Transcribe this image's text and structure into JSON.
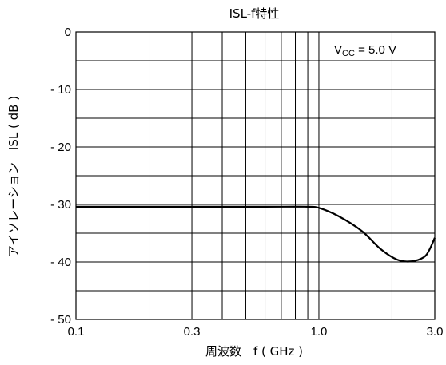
{
  "chart_data": {
    "type": "line",
    "title": "ISL-f特性",
    "xlabel": "周波数　f ( GHz )",
    "ylabel": "アイソレーション　ISL ( dB )",
    "x_scale": "log",
    "xlim": [
      0.1,
      3.0
    ],
    "ylim": [
      -50,
      0
    ],
    "x_tick_labels": [
      "0.1",
      "0.3",
      "1.0",
      "3.0"
    ],
    "x_tick_values": [
      0.1,
      0.3,
      1.0,
      3.0
    ],
    "y_tick_labels": [
      "0",
      "- 10",
      "- 20",
      "- 30",
      "- 40",
      "- 50"
    ],
    "y_tick_values": [
      0,
      -10,
      -20,
      -30,
      -40,
      -50
    ],
    "grid": true,
    "annotation": {
      "main": "V",
      "sub": "CC",
      "rest": " = 5.0 V"
    },
    "series": [
      {
        "x": [
          0.1,
          0.3,
          0.6,
          0.9,
          1.0,
          1.2,
          1.5,
          1.8,
          2.1,
          2.4,
          2.7,
          2.85,
          3.0
        ],
        "values": [
          -30.4,
          -30.4,
          -30.4,
          -30.4,
          -30.6,
          -32.0,
          -34.6,
          -37.8,
          -39.6,
          -39.9,
          -39.2,
          -37.9,
          -35.8
        ]
      }
    ]
  }
}
